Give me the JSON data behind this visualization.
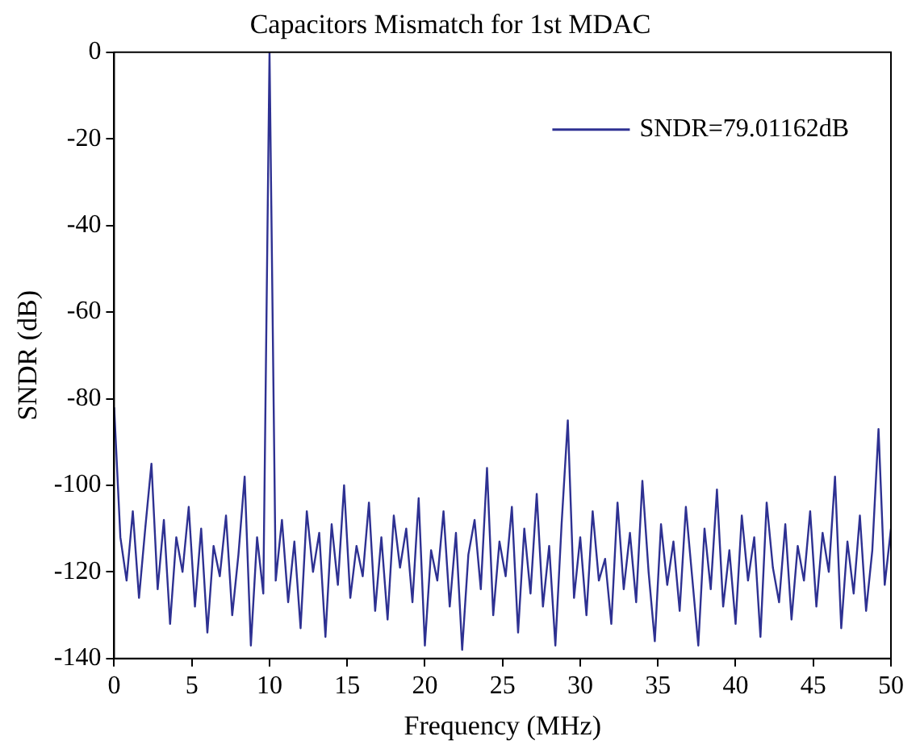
{
  "chart_data": {
    "type": "line",
    "title": "Capacitors Mismatch for 1st MDAC",
    "xlabel": "Frequency (MHz)",
    "ylabel": "SNDR (dB)",
    "xlim": [
      0,
      50
    ],
    "xticks": [
      0,
      5,
      10,
      15,
      20,
      25,
      30,
      35,
      40,
      45,
      50
    ],
    "ylim": [
      -140,
      0
    ],
    "yticks": [
      -140,
      -120,
      -100,
      -80,
      -60,
      -40,
      -20,
      0
    ],
    "grid": false,
    "legend": "top right",
    "marker": "none",
    "line_style": "solid",
    "series": [
      {
        "name": "SNDR=79.01162dB",
        "color": "#2e3192",
        "x": [
          0,
          0.4,
          0.8,
          1.2,
          1.6,
          2,
          2.4,
          2.8,
          3.2,
          3.6,
          4,
          4.4,
          4.8,
          5.2,
          5.6,
          6,
          6.4,
          6.8,
          7.2,
          7.6,
          8,
          8.4,
          8.8,
          9.2,
          9.6,
          10,
          10.4,
          10.8,
          11.2,
          11.6,
          12,
          12.4,
          12.8,
          13.2,
          13.6,
          14,
          14.4,
          14.8,
          15.2,
          15.6,
          16,
          16.4,
          16.8,
          17.2,
          17.6,
          18,
          18.4,
          18.8,
          19.2,
          19.6,
          20,
          20.4,
          20.8,
          21.2,
          21.6,
          22,
          22.4,
          22.8,
          23.2,
          23.6,
          24,
          24.4,
          24.8,
          25.2,
          25.6,
          26,
          26.4,
          26.8,
          27.2,
          27.6,
          28,
          28.4,
          28.8,
          29.2,
          29.6,
          30,
          30.4,
          30.8,
          31.2,
          31.6,
          32,
          32.4,
          32.8,
          33.2,
          33.6,
          34,
          34.4,
          34.8,
          35.2,
          35.6,
          36,
          36.4,
          36.8,
          37.2,
          37.6,
          38,
          38.4,
          38.8,
          39.2,
          39.6,
          40,
          40.4,
          40.8,
          41.2,
          41.6,
          42,
          42.4,
          42.8,
          43.2,
          43.6,
          44,
          44.4,
          44.8,
          45.2,
          45.6,
          46,
          46.4,
          46.8,
          47.2,
          47.6,
          48,
          48.4,
          48.8,
          49.2,
          49.6,
          50
        ],
        "values": [
          -82,
          -112,
          -122,
          -106,
          -126,
          -110,
          -95,
          -124,
          -108,
          -132,
          -112,
          -120,
          -105,
          -128,
          -110,
          -134,
          -114,
          -121,
          -107,
          -130,
          -116,
          -98,
          -137,
          -112,
          -125,
          0,
          -122,
          -108,
          -127,
          -113,
          -133,
          -106,
          -120,
          -111,
          -135,
          -109,
          -123,
          -100,
          -126,
          -114,
          -121,
          -104,
          -129,
          -112,
          -131,
          -107,
          -119,
          -110,
          -127,
          -103,
          -137,
          -115,
          -122,
          -106,
          -128,
          -111,
          -138,
          -116,
          -108,
          -124,
          -96,
          -130,
          -113,
          -121,
          -105,
          -134,
          -110,
          -125,
          -102,
          -128,
          -114,
          -137,
          -109,
          -85,
          -126,
          -112,
          -130,
          -106,
          -122,
          -117,
          -132,
          -104,
          -124,
          -111,
          -127,
          -99,
          -120,
          -136,
          -109,
          -123,
          -113,
          -129,
          -105,
          -121,
          -137,
          -110,
          -124,
          -101,
          -128,
          -115,
          -132,
          -107,
          -122,
          -112,
          -135,
          -104,
          -119,
          -127,
          -109,
          -131,
          -114,
          -122,
          -106,
          -128,
          -111,
          -120,
          -98,
          -133,
          -113,
          -125,
          -107,
          -129,
          -115,
          -87,
          -123,
          -110
        ]
      }
    ]
  }
}
